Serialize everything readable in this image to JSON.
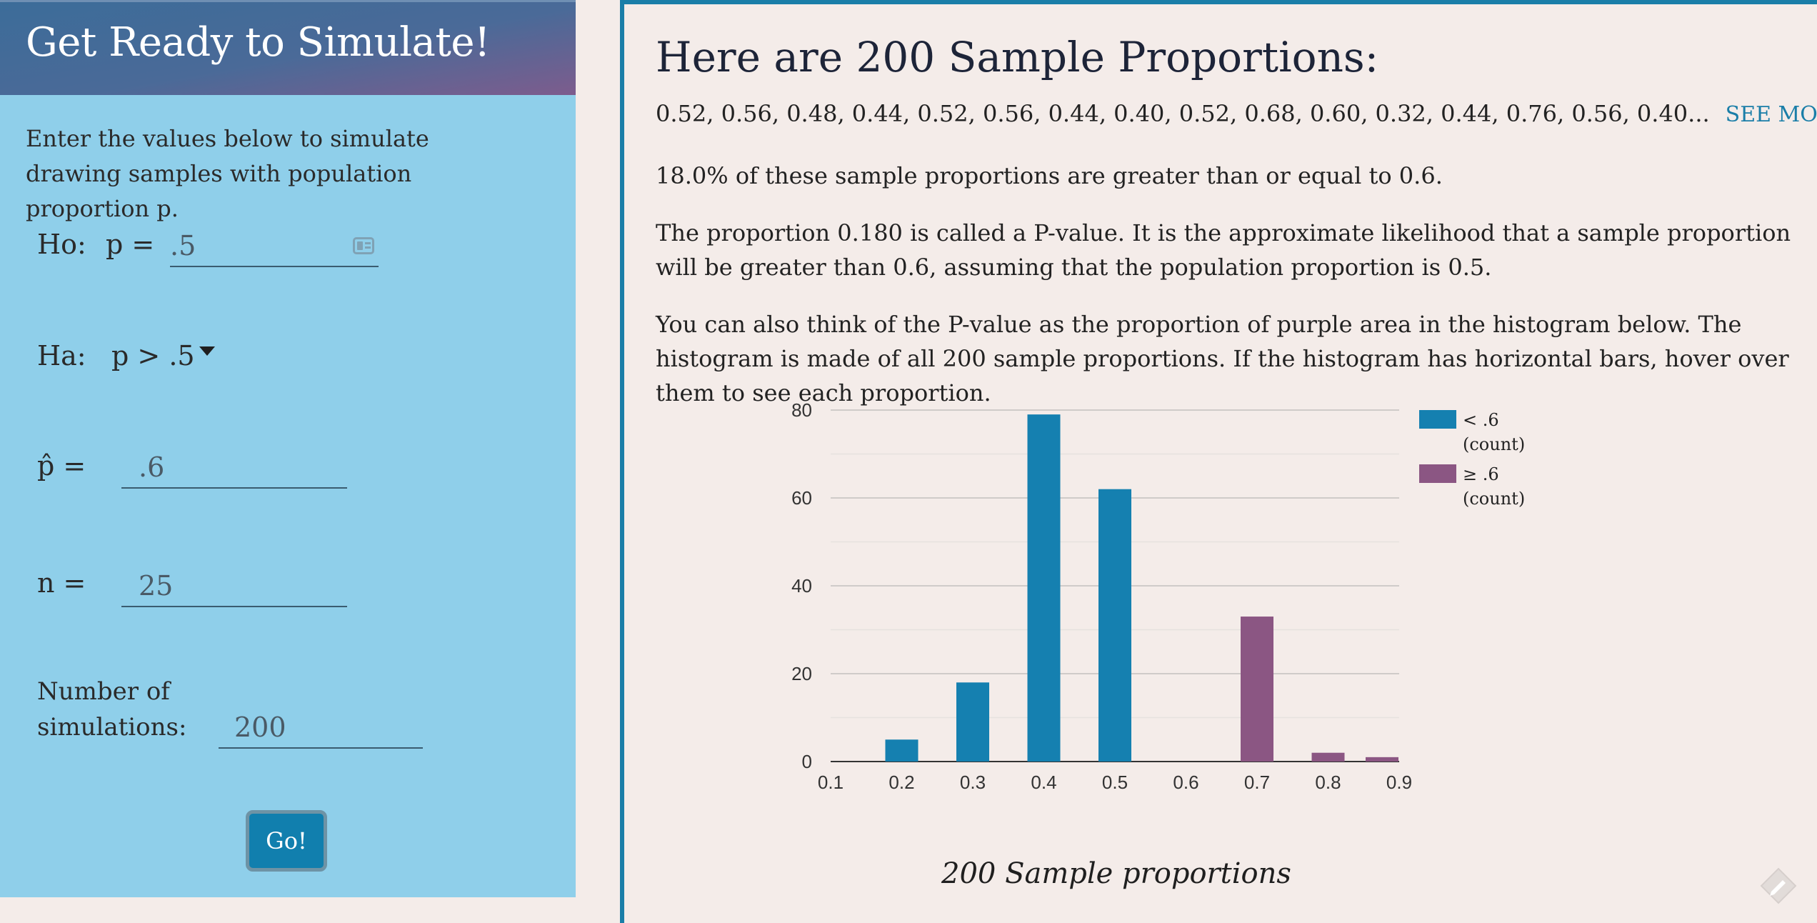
{
  "left": {
    "title": "Get Ready to Simulate!",
    "intro": "Enter the values below to simulate drawing samples with population proportion p.",
    "ho_label": "Ho:",
    "ho_p_label": "p =",
    "ho_value": ".5",
    "ha_label": "Ha:",
    "ha_value": "p > .5",
    "phat_label": "p̂ =",
    "phat_value": ".6",
    "n_label": "n =",
    "n_value": "25",
    "num_sims_label_1": "Number of",
    "num_sims_label_2": "simulations:",
    "num_sims_value": "200",
    "go_label": "Go!"
  },
  "right": {
    "title": "Here are 200 Sample Proportions:",
    "sample_list": "0.52, 0.56, 0.48, 0.44, 0.52, 0.56, 0.44, 0.40, 0.52, 0.68, 0.60, 0.32, 0.44, 0.76, 0.56, 0.40...",
    "see_more": "SEE MORE",
    "para1": "18.0% of these sample proportions are greater than or equal to 0.6.",
    "para2": "The proportion 0.180 is called a P-value. It is the approximate likelihood that a sample proportion will be greater than 0.6, assuming that the population proportion is 0.5.",
    "para3": "You can also think of the P-value as the proportion of purple area in the histogram below. The histogram is made of all 200 sample proportions. If the histogram has horizontal bars, hover over them to see each proportion.",
    "chart_caption": "200 Sample proportions"
  },
  "colors": {
    "below": "#1580b0",
    "above": "#8b5683"
  },
  "chart_data": {
    "type": "bar",
    "title": "",
    "xlabel": "200 Sample proportions",
    "ylabel": "",
    "x_ticks": [
      "0.1",
      "0.2",
      "0.3",
      "0.4",
      "0.5",
      "0.6",
      "0.7",
      "0.8",
      "0.9"
    ],
    "y_ticks": [
      "0",
      "20",
      "40",
      "60",
      "80"
    ],
    "ylim": [
      0,
      80
    ],
    "xlim": [
      0.1,
      0.9
    ],
    "grid": true,
    "legend_position": "right",
    "series": [
      {
        "name": "< .6 (count)",
        "legend_line1": "< .6",
        "legend_line2": "(count)",
        "color": "#1580b0",
        "points": [
          {
            "x": 0.2,
            "y": 5
          },
          {
            "x": 0.3,
            "y": 18
          },
          {
            "x": 0.4,
            "y": 79
          },
          {
            "x": 0.5,
            "y": 62
          }
        ]
      },
      {
        "name": "≥ .6 (count)",
        "legend_line1": "≥ .6",
        "legend_line2": "(count)",
        "color": "#8b5683",
        "points": [
          {
            "x": 0.7,
            "y": 33
          },
          {
            "x": 0.8,
            "y": 2
          },
          {
            "x": 0.9,
            "y": 1
          }
        ]
      }
    ]
  }
}
